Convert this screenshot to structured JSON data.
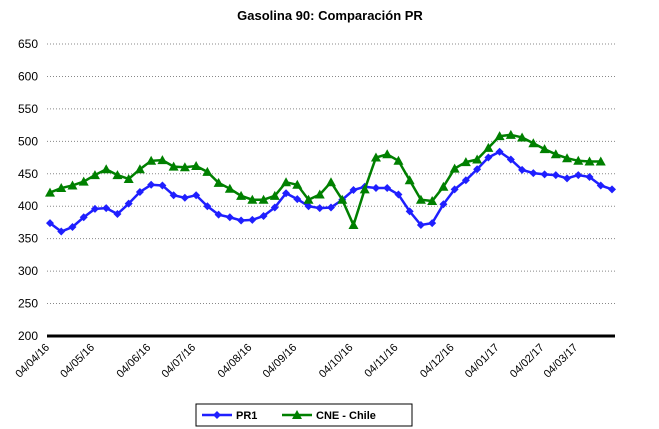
{
  "chart_data": {
    "type": "line",
    "title": "Gasolina 90: Comparación PR",
    "categories": [
      "04/04/16",
      null,
      null,
      null,
      "04/05/16",
      null,
      null,
      null,
      null,
      "04/06/16",
      null,
      null,
      null,
      "04/07/16",
      null,
      null,
      null,
      null,
      "04/08/16",
      null,
      null,
      null,
      "04/09/16",
      null,
      null,
      null,
      null,
      "04/10/16",
      null,
      null,
      null,
      "04/11/16",
      null,
      null,
      null,
      null,
      "04/12/16",
      null,
      null,
      null,
      "04/01/17",
      null,
      null,
      null,
      "04/02/17",
      null,
      null,
      "04/03/17",
      null,
      null,
      null
    ],
    "series": [
      {
        "name": "PR1",
        "color": "#1f1fff",
        "marker": "diamond",
        "values": [
          374,
          361,
          368,
          383,
          396,
          397,
          388,
          404,
          422,
          433,
          432,
          417,
          413,
          417,
          400,
          387,
          383,
          378,
          379,
          385,
          398,
          420,
          411,
          400,
          397,
          398,
          410,
          425,
          430,
          428,
          428,
          418,
          392,
          371,
          374,
          403,
          426,
          440,
          457,
          475,
          484,
          472,
          456,
          451,
          449,
          448,
          443,
          448,
          445,
          432,
          426
        ]
      },
      {
        "name": "CNE - Chile",
        "color": "#008000",
        "marker": "triangle",
        "values": [
          421,
          428,
          432,
          438,
          448,
          457,
          448,
          442,
          457,
          470,
          471,
          461,
          460,
          462,
          453,
          436,
          427,
          416,
          410,
          410,
          416,
          437,
          433,
          410,
          418,
          437,
          410,
          371,
          426,
          475,
          480,
          470,
          440,
          410,
          408,
          430,
          458,
          468,
          472,
          490,
          508,
          510,
          506,
          497,
          488,
          480,
          474,
          470,
          469,
          469,
          null
        ]
      }
    ],
    "ylim": [
      200,
      650
    ],
    "yticks": [
      200,
      250,
      300,
      350,
      400,
      450,
      500,
      550,
      600,
      650
    ],
    "grid": true,
    "legend": "bottom"
  }
}
